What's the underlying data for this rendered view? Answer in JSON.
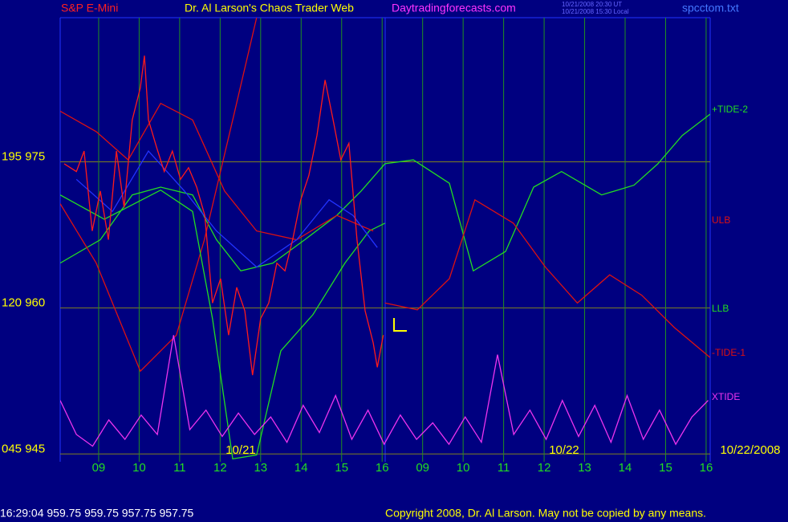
{
  "header": {
    "symbol": "S&P E-Mini",
    "title": "Dr. Al Larson's Chaos Trader Web",
    "site": "Daytradingforecasts.com",
    "time_ut": "10/21/2008 20:30 UT",
    "time_local": "10/21/2008 15:30 Local",
    "file": "spcctom.txt"
  },
  "footer": {
    "quote": "16:29:04  959.75 959.75 957.75 957.75",
    "copyright": "Copyright 2008, Dr. Al Larson. May not be copied by any means."
  },
  "chart_data": {
    "type": "line",
    "date_labels": [
      "10/21",
      "10/22",
      "10/22/2008"
    ],
    "xlim": [
      0.05,
      16.1
    ],
    "xticks": [
      {
        "value": 1,
        "label": "09"
      },
      {
        "value": 2,
        "label": "10"
      },
      {
        "value": 3,
        "label": "11"
      },
      {
        "value": 4,
        "label": "12"
      },
      {
        "value": 5,
        "label": "13"
      },
      {
        "value": 6,
        "label": "14"
      },
      {
        "value": 7,
        "label": "15"
      },
      {
        "value": 8,
        "label": "16"
      },
      {
        "value": 9,
        "label": "09"
      },
      {
        "value": 10,
        "label": "10"
      },
      {
        "value": 11,
        "label": "11"
      },
      {
        "value": 12,
        "label": "12"
      },
      {
        "value": 13,
        "label": "13"
      },
      {
        "value": 14,
        "label": "14"
      },
      {
        "value": 15,
        "label": "15"
      },
      {
        "value": 16,
        "label": "16"
      }
    ],
    "ylim": [
      944.2,
      989.8
    ],
    "yticks": [
      {
        "value": 975,
        "label": "195  975"
      },
      {
        "value": 960,
        "label": "120  960"
      },
      {
        "value": 945,
        "label": "045  945"
      }
    ],
    "grid": true,
    "series": [
      {
        "name": "+TIDE-2",
        "color": "#22dd22",
        "x": [
          0.05,
          1.04,
          1.83,
          2.53,
          3.32,
          3.91,
          4.51,
          5.3,
          6.09,
          6.88,
          7.48,
          8.07,
          8.77,
          9.66,
          10.25,
          11.05,
          11.74,
          12.43,
          13.42,
          14.22,
          14.81,
          15.41,
          16.1
        ],
        "values": [
          964.6,
          967.0,
          971.6,
          972.4,
          971.6,
          967.0,
          963.8,
          964.6,
          967.0,
          969.5,
          972.0,
          974.8,
          975.2,
          972.8,
          963.8,
          965.8,
          972.4,
          974.0,
          971.6,
          972.6,
          974.8,
          977.7,
          979.9
        ]
      },
      {
        "name": "ULB",
        "color": "#dd1111",
        "x": [
          0.05,
          0.94,
          2.03,
          2.92,
          3.61,
          4.31,
          4.9
        ],
        "values": [
          970.7,
          964.6,
          953.5,
          957.2,
          967.0,
          979.3,
          989.8
        ]
      },
      {
        "name": "LLB",
        "color": "#22dd22",
        "x": [
          0.05,
          1.14,
          2.53,
          3.32,
          3.81,
          4.31,
          4.9,
          5.5,
          6.29,
          7.08,
          7.68,
          8.07
        ],
        "values": [
          971.6,
          969.1,
          972.1,
          969.9,
          958.9,
          944.5,
          944.9,
          955.6,
          959.3,
          964.6,
          967.9,
          968.7
        ]
      },
      {
        "name": "-TIDE-1",
        "color": "#dd1111",
        "x": [
          0.05,
          0.94,
          1.73,
          2.53,
          3.32,
          4.11,
          4.9,
          5.89,
          6.88,
          7.78,
          null,
          8.07,
          8.87,
          9.66,
          10.29,
          11.24,
          12.03,
          12.82,
          13.62,
          14.41,
          15.21,
          16.1
        ],
        "values": [
          980.2,
          978.1,
          975.2,
          981.0,
          979.3,
          972.0,
          967.9,
          967.0,
          969.5,
          967.9,
          null,
          960.5,
          959.8,
          963.0,
          971.1,
          968.7,
          964.2,
          960.5,
          963.4,
          961.3,
          958.0,
          954.9
        ]
      },
      {
        "name": "XTIDE",
        "color": "#ee33ee",
        "x": [
          0.05,
          0.45,
          0.85,
          1.25,
          1.65,
          2.05,
          2.45,
          2.85,
          3.25,
          3.65,
          4.05,
          4.45,
          4.85,
          5.25,
          5.65,
          6.05,
          6.45,
          6.85,
          7.25,
          7.65,
          8.05,
          8.45,
          8.85,
          9.25,
          9.65,
          10.05,
          10.45,
          10.85,
          11.25,
          11.65,
          12.05,
          12.45,
          12.85,
          13.25,
          13.65,
          14.05,
          14.45,
          14.85,
          15.25,
          15.65,
          16.05
        ],
        "values": [
          950.5,
          947.0,
          945.8,
          948.5,
          946.5,
          949.0,
          947.0,
          957.2,
          947.5,
          949.5,
          946.8,
          949.2,
          947.0,
          948.8,
          946.2,
          950.0,
          947.2,
          951.0,
          946.5,
          949.5,
          946.0,
          949.0,
          946.5,
          948.2,
          946.0,
          948.8,
          946.2,
          955.2,
          947.0,
          949.5,
          946.5,
          950.5,
          946.8,
          950.0,
          946.2,
          951.0,
          946.5,
          949.5,
          946.0,
          948.8,
          950.5
        ]
      },
      {
        "color": "#2233ff",
        "x": [
          0.45,
          1.34,
          2.23,
          3.12,
          3.91,
          4.9,
          5.89,
          6.69,
          7.28,
          7.88
        ],
        "values": [
          973.2,
          969.9,
          976.1,
          972.0,
          967.9,
          964.2,
          967.0,
          971.1,
          969.5,
          966.2
        ]
      },
      {
        "color": "#ff1a1a",
        "x": [
          0.15,
          0.45,
          0.64,
          0.84,
          1.04,
          1.24,
          1.44,
          1.63,
          1.83,
          2.03,
          2.13,
          2.23,
          2.43,
          2.62,
          2.82,
          3.02,
          3.22,
          3.42,
          3.62,
          3.81,
          4.01,
          4.21,
          4.41,
          4.61,
          4.8,
          5.0,
          5.2,
          5.4,
          5.6,
          5.79,
          5.99,
          6.19,
          6.39,
          6.59,
          6.79,
          6.98,
          7.18,
          7.38,
          7.58,
          7.78,
          7.88,
          8.03
        ],
        "values": [
          974.8,
          974.0,
          976.1,
          967.9,
          972.0,
          967.0,
          976.1,
          970.3,
          979.3,
          982.6,
          985.9,
          979.3,
          976.5,
          974.0,
          976.1,
          973.2,
          974.4,
          972.4,
          969.5,
          960.5,
          963.0,
          957.2,
          962.1,
          959.7,
          953.1,
          958.9,
          960.5,
          964.6,
          963.8,
          967.0,
          971.1,
          973.6,
          977.7,
          983.4,
          979.3,
          975.2,
          976.9,
          967.0,
          959.7,
          956.4,
          953.9,
          957.2
        ]
      }
    ]
  }
}
